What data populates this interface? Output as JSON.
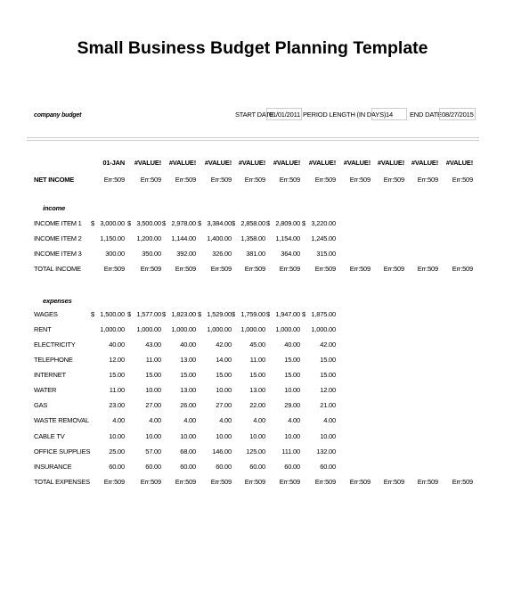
{
  "header": {
    "title": "Small Business Budget Planning Template",
    "subtitle": "company budget",
    "start_date_label": "START DATE",
    "start_date": "01/01/2011",
    "period_label": "PERIOD LENGTH (IN DAYS)",
    "period": "14",
    "end_date_label": "END DATE",
    "end_date": "08/27/2015"
  },
  "table": {
    "columns": [
      "01-JAN",
      "#VALUE!",
      "#VALUE!",
      "#VALUE!",
      "#VALUE!",
      "#VALUE!",
      "#VALUE!",
      "#VALUE!",
      "#VALUE!",
      "#VALUE!",
      "#VALUE!"
    ],
    "rows": [
      {
        "label": "NET INCOME",
        "cells": [
          "Err:509",
          "Err:509",
          "Err:509",
          "Err:509",
          "Err:509",
          "Err:509",
          "Err:509",
          "Err:509",
          "Err:509",
          "Err:509",
          "Err:509"
        ]
      },
      {
        "heading": "income"
      },
      {
        "label": "INCOME ITEM 1",
        "currency": "$",
        "cells": [
          "3,000.00",
          "3,500.00",
          "2,978.00",
          "3,384.00",
          "2,858.00",
          "2,809.00",
          "3,220.00"
        ]
      },
      {
        "label": "INCOME ITEM 2",
        "cells": [
          "1,150.00",
          "1,200.00",
          "1,144.00",
          "1,400.00",
          "1,358.00",
          "1,154.00",
          "1,245.00"
        ]
      },
      {
        "label": "INCOME ITEM 3",
        "cells": [
          "300.00",
          "350.00",
          "392.00",
          "326.00",
          "381.00",
          "364.00",
          "315.00"
        ]
      },
      {
        "label": "TOTAL INCOME",
        "cells": [
          "Err:509",
          "Err:509",
          "Err:509",
          "Err:509",
          "Err:509",
          "Err:509",
          "Err:509",
          "Err:509",
          "Err:509",
          "Err:509",
          "Err:509"
        ]
      },
      {
        "heading": "expenses"
      },
      {
        "label": "WAGES",
        "currency": "$",
        "cells": [
          "1,500.00",
          "1,577.00",
          "1,823.00",
          "1,529.00",
          "1,759.00",
          "1,947.00",
          "1,875.00"
        ]
      },
      {
        "label": "RENT",
        "cells": [
          "1,000.00",
          "1,000.00",
          "1,000.00",
          "1,000.00",
          "1,000.00",
          "1,000.00",
          "1,000.00"
        ]
      },
      {
        "label": "ELECTRICITY",
        "cells": [
          "40.00",
          "43.00",
          "40.00",
          "42.00",
          "45.00",
          "40.00",
          "42.00"
        ]
      },
      {
        "label": "TELEPHONE",
        "cells": [
          "12.00",
          "11.00",
          "13.00",
          "14.00",
          "11.00",
          "15.00",
          "15.00"
        ]
      },
      {
        "label": "INTERNET",
        "cells": [
          "15.00",
          "15.00",
          "15.00",
          "15.00",
          "15.00",
          "15.00",
          "15.00"
        ]
      },
      {
        "label": "WATER",
        "cells": [
          "11.00",
          "10.00",
          "13.00",
          "10.00",
          "13.00",
          "10.00",
          "12.00"
        ]
      },
      {
        "label": "GAS",
        "cells": [
          "23.00",
          "27.00",
          "26.00",
          "27.00",
          "22.00",
          "29.00",
          "21.00"
        ]
      },
      {
        "label": "WASTE REMOVAL",
        "cells": [
          "4.00",
          "4.00",
          "4.00",
          "4.00",
          "4.00",
          "4.00",
          "4.00"
        ]
      },
      {
        "label": "CABLE TV",
        "cells": [
          "10.00",
          "10.00",
          "10.00",
          "10.00",
          "10.00",
          "10.00",
          "10.00"
        ]
      },
      {
        "label": "OFFICE SUPPLIES",
        "cells": [
          "25.00",
          "57.00",
          "68.00",
          "146.00",
          "125.00",
          "111.00",
          "132.00"
        ]
      },
      {
        "label": "INSURANCE",
        "cells": [
          "60.00",
          "60.00",
          "60.00",
          "60.00",
          "60.00",
          "60.00",
          "60.00"
        ]
      },
      {
        "label": "TOTAL EXPENSES",
        "cells": [
          "Err:509",
          "Err:509",
          "Err:509",
          "Err:509",
          "Err:509",
          "Err:509",
          "Err:509",
          "Err:509",
          "Err:509",
          "Err:509",
          "Err:509"
        ]
      }
    ]
  }
}
